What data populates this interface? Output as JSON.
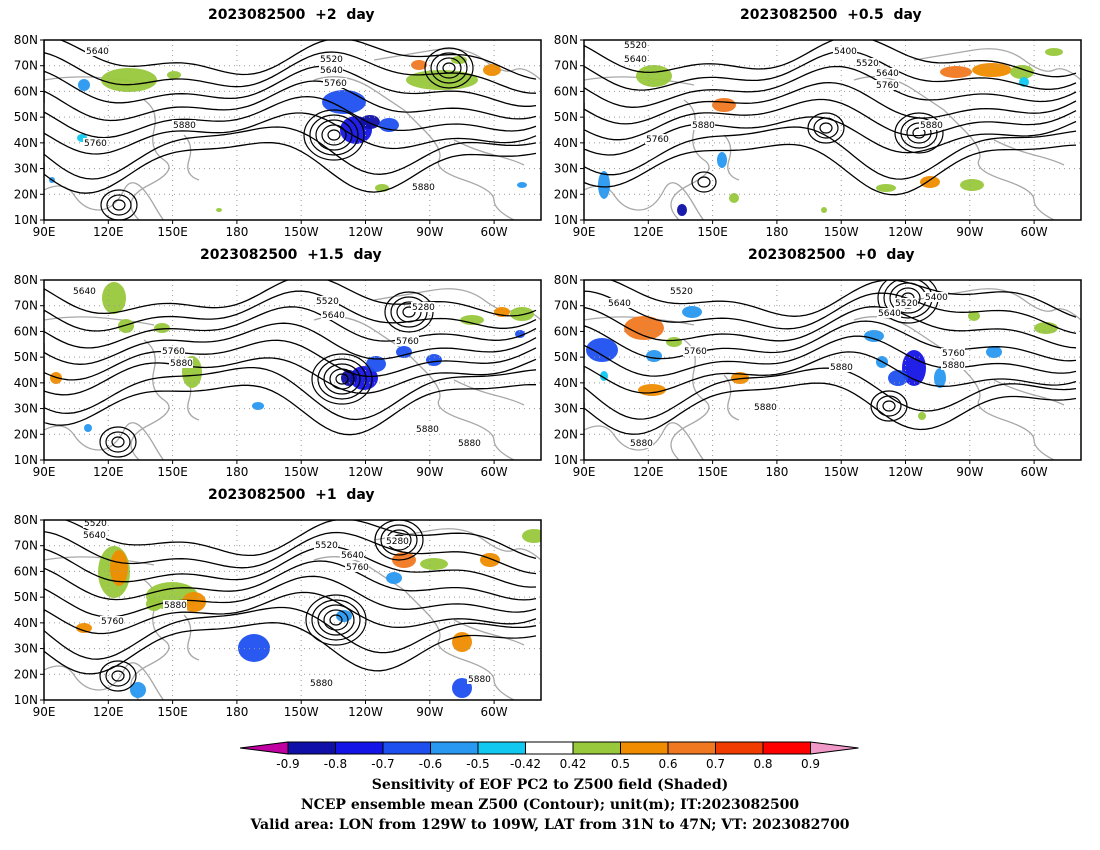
{
  "panels": [
    {
      "id": "p2",
      "title": "2023082500  +2  day"
    },
    {
      "id": "p05",
      "title": "2023082500  +0.5  day"
    },
    {
      "id": "p15",
      "title": "2023082500  +1.5  day"
    },
    {
      "id": "p0",
      "title": "2023082500  +0  day"
    },
    {
      "id": "p1",
      "title": "2023082500  +1  day"
    }
  ],
  "axes": {
    "lat_labels": [
      "80N",
      "70N",
      "60N",
      "50N",
      "40N",
      "30N",
      "20N",
      "10N"
    ],
    "lon_labels": [
      "90E",
      "120E",
      "150E",
      "180",
      "150W",
      "120W",
      "90W",
      "60W"
    ]
  },
  "contour_labels": {
    "p2": [
      "5640",
      "5520",
      "5640",
      "5760",
      "5880",
      "5760",
      "5880"
    ],
    "p05": [
      "5520",
      "5640",
      "5400",
      "5520",
      "5640",
      "5760",
      "5880",
      "5760",
      "5880"
    ],
    "p15": [
      "5640",
      "5520",
      "5640",
      "5280",
      "5760",
      "5760",
      "5880",
      "5880",
      "5880"
    ],
    "p0": [
      "5520",
      "5640",
      "5520",
      "5400",
      "5640",
      "5760",
      "5880",
      "5760",
      "5880",
      "5880",
      "5880"
    ],
    "p1": [
      "5520",
      "5640",
      "5280",
      "5520",
      "5640",
      "5760",
      "5880",
      "5760",
      "5880",
      "5880"
    ]
  },
  "colorbar": {
    "ticks": [
      "-0.9",
      "-0.8",
      "-0.7",
      "-0.6",
      "-0.5",
      "-0.42",
      "0.42",
      "0.5",
      "0.6",
      "0.7",
      "0.8",
      "0.9"
    ],
    "colors": [
      "#c000a0",
      "#1010a8",
      "#1414e6",
      "#1e50f0",
      "#2898f0",
      "#10c8f0",
      "#ffffff",
      "#98c83c",
      "#f08c00",
      "#f07820",
      "#f03c00",
      "#ff0000",
      "#f098c8"
    ]
  },
  "captions": {
    "line1": "Sensitivity of EOF PC2 to Z500 field (Shaded)",
    "line2": "NCEP ensemble mean Z500 (Contour); unit(m); IT:2023082500",
    "line3": "Valid area: LON from 129W to 109W, LAT from 31N to 47N; VT: 2023082700"
  }
}
